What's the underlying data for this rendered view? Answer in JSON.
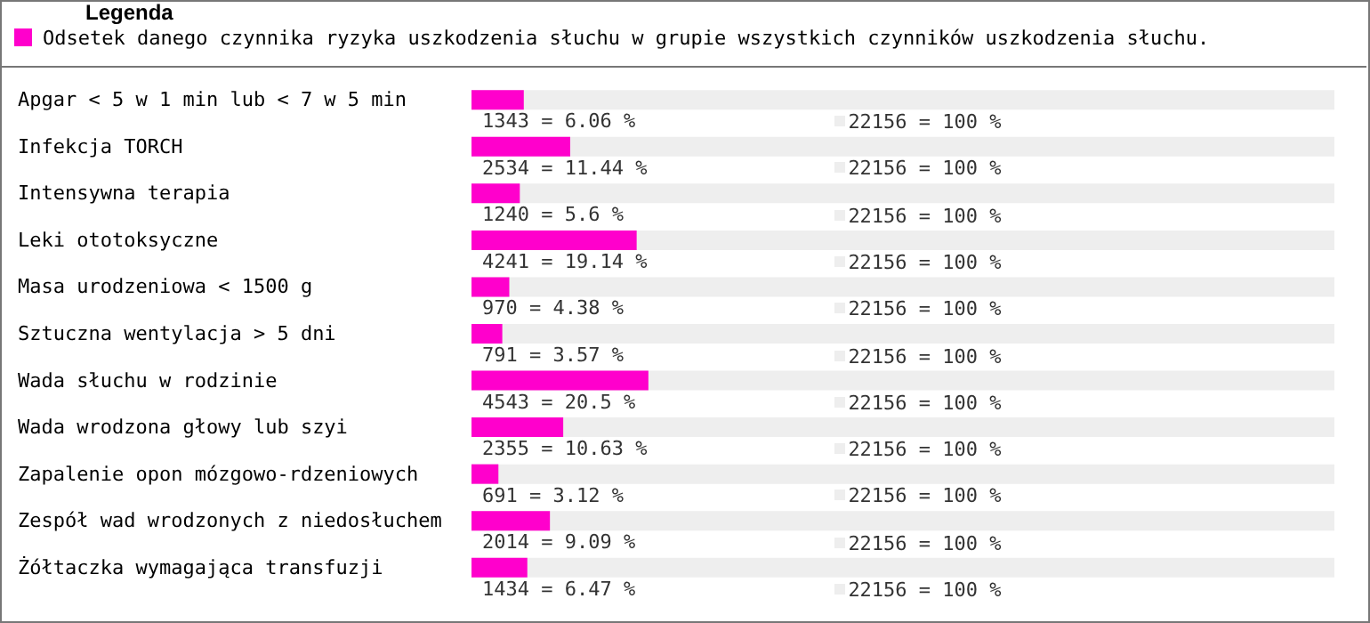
{
  "chart_data": {
    "type": "bar",
    "orientation": "horizontal",
    "legend_title": "Legenda",
    "legend": "top left",
    "tick_labels": false,
    "xlim": [
      0,
      100
    ],
    "categories": [
      "Apgar < 5 w 1 min lub < 7 w 5 min",
      "Infekcja TORCH",
      "Intensywna terapia",
      "Leki ototoksyczne",
      "Masa urodzeniowa < 1500 g",
      "Sztuczna wentylacja > 5 dni",
      "Wada słuchu w rodzinie",
      "Wada wrodzona głowy lub szyi",
      "Zapalenie opon mózgowo-rdzeniowych",
      "Zespół wad wrodzonych z niedosłuchem",
      "Żółtaczka wymagająca transfuzji"
    ],
    "series": [
      {
        "name": "Odsetek danego czynnika ryzyka uszkodzenia słuchu w grupie wszystkich czynników uszkodzenia słuchu.",
        "color": "#ff00cc",
        "values": [
          6.06,
          11.44,
          5.6,
          19.14,
          4.38,
          3.57,
          20.5,
          10.63,
          3.12,
          9.09,
          6.47
        ],
        "value_labels": [
          "1343 = 6.06 %",
          "2534 = 11.44 %",
          "1240 = 5.6 %",
          "4241 = 19.14 %",
          "970 = 4.38 %",
          "791 = 3.57 %",
          "4543 = 20.5 %",
          "2355 = 10.63 %",
          "691 = 3.12 %",
          "2014 = 9.09 %",
          "1434 = 6.47 %"
        ]
      }
    ],
    "annotations": [
      "22156 = 100 %",
      "22156 = 100 %",
      "22156 = 100 %",
      "22156 = 100 %",
      "22156 = 100 %",
      "22156 = 100 %",
      "22156 = 100 %",
      "22156 = 100 %",
      "22156 = 100 %",
      "22156 = 100 %",
      "22156 = 100 %"
    ]
  }
}
